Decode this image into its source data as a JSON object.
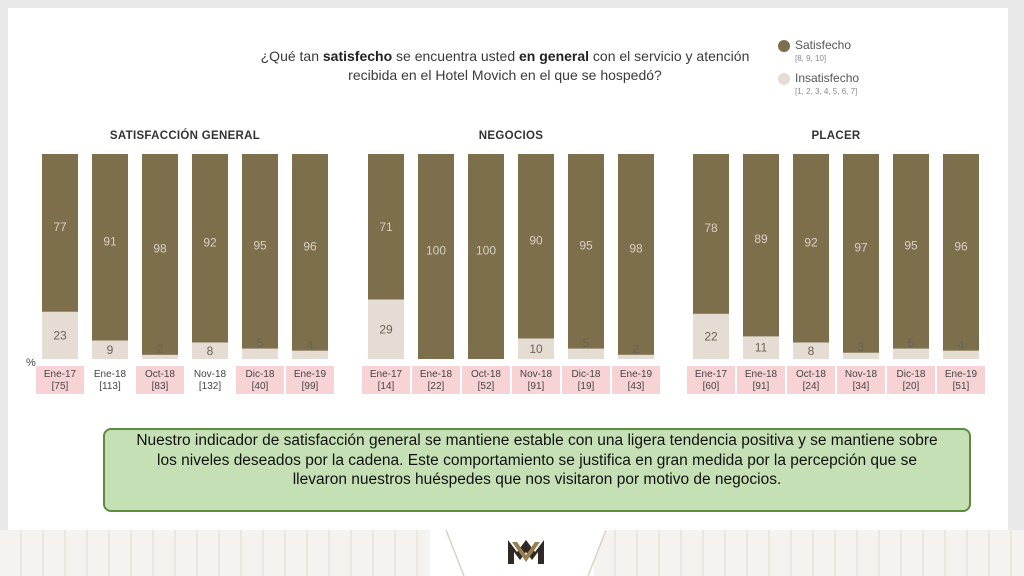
{
  "question": {
    "pre": "¿Qué tan ",
    "bold1": "satisfecho",
    "mid": " se encuentra usted ",
    "bold2": "en general",
    "post": " con el servicio y atención recibida en el Hotel Movich en el que se hospedó?"
  },
  "legend": [
    {
      "name": "Satisfecho",
      "range": "[8, 9, 10]",
      "color": "#7d6e4c"
    },
    {
      "name": "Insatisfecho",
      "range": "[1, 2, 3, 4, 5, 6, 7]",
      "color": "#e5ddd3"
    }
  ],
  "percent_symbol": "%",
  "summary": "Nuestro indicador de satisfacción general se mantiene estable con una ligera tendencia positiva y se mantiene sobre los niveles deseados por la cadena. Este comportamiento se justifica en gran medida por la percepción que se llevaron nuestros huéspedes que nos visitaron por motivo de negocios.",
  "colors": {
    "satisfied": "#7d6e4c",
    "unsatisfied": "#e5ddd3",
    "highlight": "#f8d3d6",
    "label_dark": "#d8d0c4",
    "label_light": "#6b6454"
  },
  "chart_data": [
    {
      "type": "bar",
      "title": "SATISFACCIÓN GENERAL",
      "categories": [
        "Ene-17",
        "Ene-18",
        "Oct-18",
        "Nov-18",
        "Dic-18",
        "Ene-19"
      ],
      "counts": [
        "[75]",
        "[113]",
        "[83]",
        "[132]",
        "[40]",
        "[99]"
      ],
      "highlight": [
        true,
        false,
        true,
        false,
        true,
        true
      ],
      "series": [
        {
          "name": "Satisfecho",
          "values": [
            77,
            91,
            98,
            92,
            95,
            96
          ]
        },
        {
          "name": "Insatisfecho",
          "values": [
            23,
            9,
            2,
            8,
            5,
            4
          ]
        }
      ],
      "stacked": true,
      "ylim": [
        0,
        100
      ]
    },
    {
      "type": "bar",
      "title": "NEGOCIOS",
      "categories": [
        "Ene-17",
        "Ene-18",
        "Oct-18",
        "Nov-18",
        "Dic-18",
        "Ene-19"
      ],
      "counts": [
        "[14]",
        "[22]",
        "[52]",
        "[91]",
        "[19]",
        "[43]"
      ],
      "highlight": [
        true,
        true,
        true,
        true,
        true,
        true
      ],
      "series": [
        {
          "name": "Satisfecho",
          "values": [
            71,
            100,
            100,
            90,
            95,
            98
          ]
        },
        {
          "name": "Insatisfecho",
          "values": [
            29,
            0,
            0,
            10,
            5,
            2
          ]
        }
      ],
      "stacked": true,
      "ylim": [
        0,
        100
      ]
    },
    {
      "type": "bar",
      "title": "PLACER",
      "categories": [
        "Ene-17",
        "Ene-18",
        "Oct-18",
        "Nov-18",
        "Dic-18",
        "Ene-19"
      ],
      "counts": [
        "[60]",
        "[91]",
        "[24]",
        "[34]",
        "[20]",
        "[51]"
      ],
      "highlight": [
        true,
        true,
        true,
        true,
        true,
        true
      ],
      "series": [
        {
          "name": "Satisfecho",
          "values": [
            78,
            89,
            92,
            97,
            95,
            96
          ]
        },
        {
          "name": "Insatisfecho",
          "values": [
            22,
            11,
            8,
            3,
            5,
            4
          ]
        }
      ],
      "stacked": true,
      "ylim": [
        0,
        100
      ]
    }
  ]
}
